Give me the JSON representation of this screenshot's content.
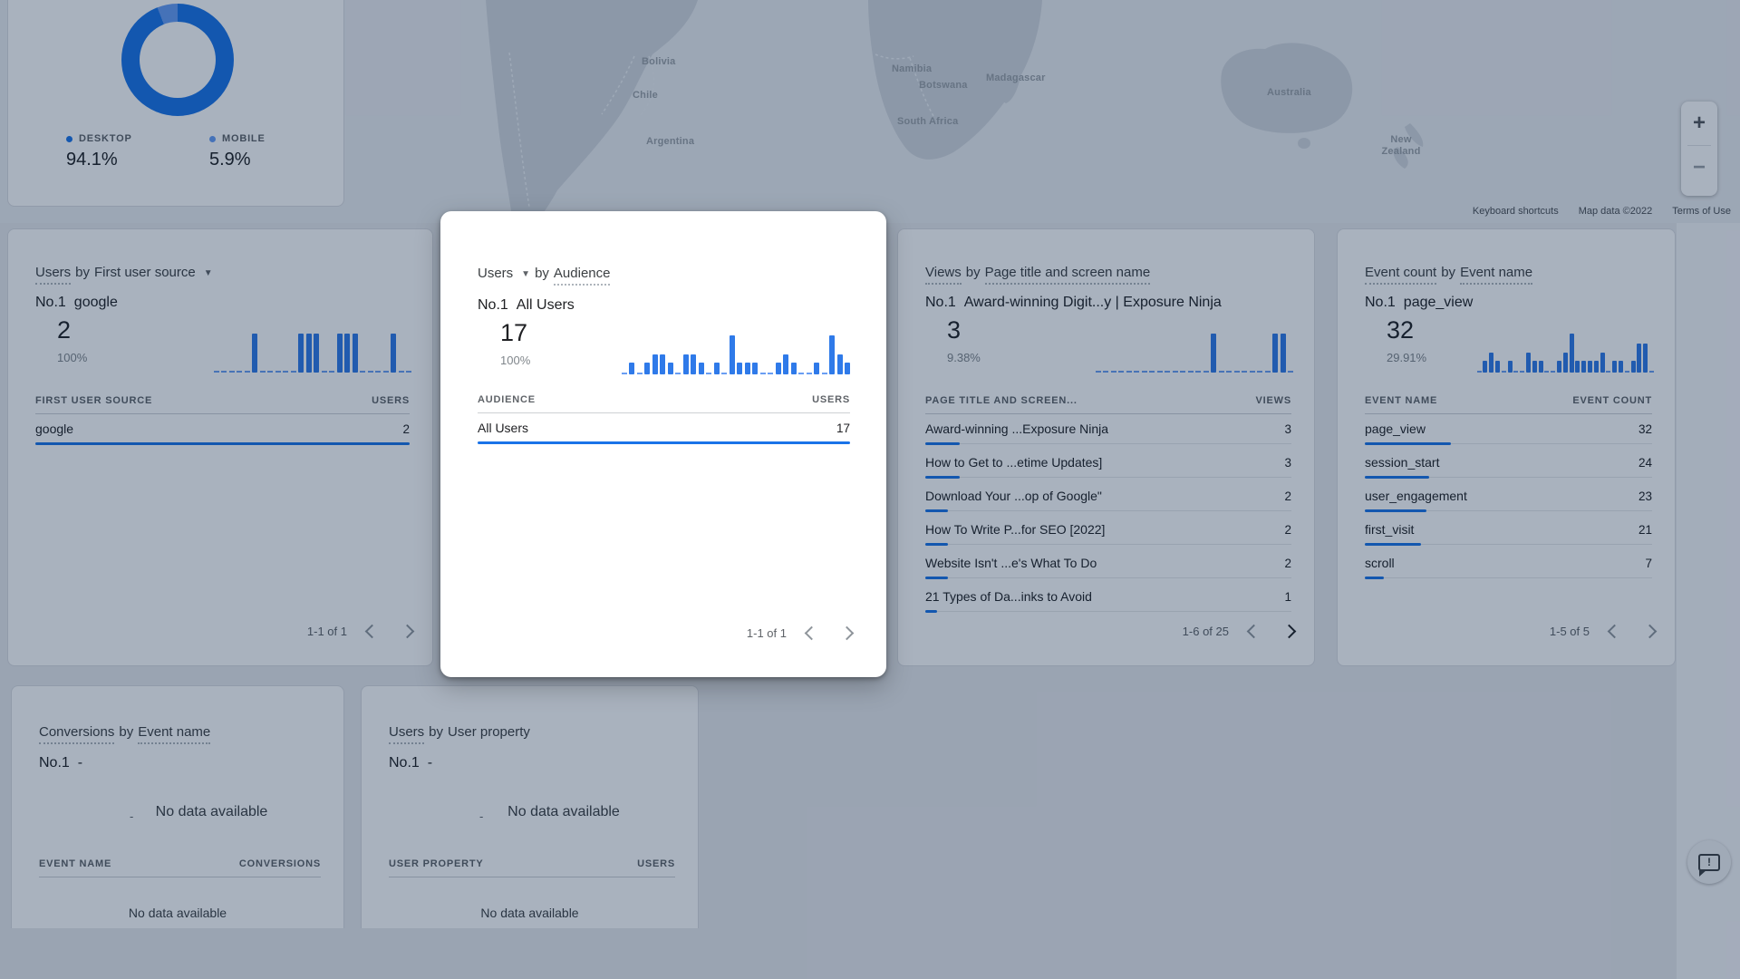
{
  "device_card": {
    "legend": [
      {
        "label": "DESKTOP",
        "value": "94.1%",
        "color": "#1a73e8"
      },
      {
        "label": "MOBILE",
        "value": "5.9%",
        "color": "#669df6"
      }
    ],
    "slices": [
      {
        "name": "desktop",
        "pct": 94.1,
        "color": "#1a73e8"
      },
      {
        "name": "mobile",
        "pct": 5.9,
        "color": "#669df6"
      }
    ]
  },
  "map": {
    "labels": [
      {
        "text": "Bolivia"
      },
      {
        "text": "Chile"
      },
      {
        "text": "Argentina"
      },
      {
        "text": "Namibia"
      },
      {
        "text": "Botswana"
      },
      {
        "text": "South Africa"
      },
      {
        "text": "Madagascar"
      },
      {
        "text": "Australia"
      },
      {
        "text": "New Zealand"
      }
    ],
    "attribution": [
      "Keyboard shortcuts",
      "Map data ©2022",
      "Terms of Use"
    ],
    "zoom_in": "+",
    "zoom_out": "−"
  },
  "cards": {
    "source": {
      "title": {
        "metric": "Users",
        "sep": "by",
        "dimension": "First user source"
      },
      "no1_label": "No.1",
      "no1_value": "google",
      "value": "2",
      "share": "100%",
      "sparkline": [
        0,
        0,
        0,
        0,
        0,
        1,
        0,
        0,
        0,
        0,
        0,
        1,
        1,
        1,
        0,
        0,
        1,
        1,
        1,
        0,
        0,
        0,
        0,
        1,
        0,
        0
      ],
      "columns": [
        "FIRST USER SOURCE",
        "USERS"
      ],
      "rows": [
        {
          "label": "google",
          "value": "2",
          "bar_pct": 100
        }
      ],
      "pagination": "1-1 of 1"
    },
    "audience": {
      "title": {
        "metric": "Users",
        "sep": "by",
        "dimension": "Audience"
      },
      "no1_label": "No.1",
      "no1_value": "All Users",
      "value": "17",
      "share": "100%",
      "sparkline": [
        0,
        1,
        0,
        1,
        2,
        2,
        1,
        0,
        2,
        2,
        1,
        0,
        1,
        0,
        4,
        1,
        1,
        1,
        0,
        0,
        1,
        2,
        1,
        0,
        0,
        1,
        0,
        4,
        2,
        1
      ],
      "columns": [
        "AUDIENCE",
        "USERS"
      ],
      "rows": [
        {
          "label": "All Users",
          "value": "17",
          "bar_pct": 100
        }
      ],
      "pagination": "1-1 of 1"
    },
    "views": {
      "title": {
        "metric": "Views",
        "sep": "by",
        "dimension": "Page title and screen name"
      },
      "no1_label": "No.1",
      "no1_value": "Award-winning Digit...y | Exposure Ninja",
      "value": "3",
      "share": "9.38%",
      "sparkline": [
        0,
        0,
        0,
        0,
        0,
        0,
        0,
        0,
        0,
        0,
        0,
        0,
        0,
        0,
        0,
        1,
        0,
        0,
        0,
        0,
        0,
        0,
        0,
        1,
        1,
        0
      ],
      "columns": [
        "PAGE TITLE AND SCREEN...",
        "VIEWS"
      ],
      "rows": [
        {
          "label": "Award-winning ...Exposure Ninja",
          "value": "3",
          "bar_pct": 9.4
        },
        {
          "label": "How to Get to ...etime Updates]",
          "value": "3",
          "bar_pct": 9.4
        },
        {
          "label": "Download Your ...op of Google\"",
          "value": "2",
          "bar_pct": 6.3
        },
        {
          "label": "How To Write P...for SEO [2022]",
          "value": "2",
          "bar_pct": 6.3
        },
        {
          "label": "Website Isn't ...e's What To Do",
          "value": "2",
          "bar_pct": 6.3
        },
        {
          "label": "21 Types of Da...inks to Avoid",
          "value": "1",
          "bar_pct": 3.2
        }
      ],
      "pagination": "1-6 of 25"
    },
    "events": {
      "title": {
        "metric": "Event count",
        "sep": "by",
        "dimension": "Event name"
      },
      "no1_label": "No.1",
      "no1_value": "page_view",
      "value": "32",
      "share": "29.91%",
      "sparkline": [
        0,
        1,
        2,
        1,
        0,
        1,
        0,
        0,
        2,
        1,
        1,
        0,
        0,
        1,
        2,
        4,
        1,
        1,
        1,
        1,
        2,
        0,
        1,
        1,
        0,
        1,
        3,
        3,
        0
      ],
      "columns": [
        "EVENT NAME",
        "EVENT COUNT"
      ],
      "rows": [
        {
          "label": "page_view",
          "value": "32",
          "bar_pct": 29.9
        },
        {
          "label": "session_start",
          "value": "24",
          "bar_pct": 22.4
        },
        {
          "label": "user_engagement",
          "value": "23",
          "bar_pct": 21.5
        },
        {
          "label": "first_visit",
          "value": "21",
          "bar_pct": 19.6
        },
        {
          "label": "scroll",
          "value": "7",
          "bar_pct": 6.5
        }
      ],
      "pagination": "1-5 of 5"
    },
    "conversions": {
      "title": {
        "metric": "Conversions",
        "sep": "by",
        "dimension": "Event name"
      },
      "no1_label": "No.1",
      "no1_value": "-",
      "dash": "-",
      "empty": "No data available",
      "columns": [
        "EVENT NAME",
        "CONVERSIONS"
      ],
      "empty_row": "No data available"
    },
    "user_property": {
      "title": {
        "metric": "Users",
        "sep": "by",
        "dimension": "User property"
      },
      "no1_label": "No.1",
      "no1_value": "-",
      "dash": "-",
      "empty": "No data available",
      "columns": [
        "USER PROPERTY",
        "USERS"
      ],
      "empty_row": "No data available"
    }
  },
  "colors": {
    "accent_blue": "#1a73e8",
    "spark_blue": "#2f7ae9",
    "overlay": "rgba(10,33,70,0.35)"
  }
}
